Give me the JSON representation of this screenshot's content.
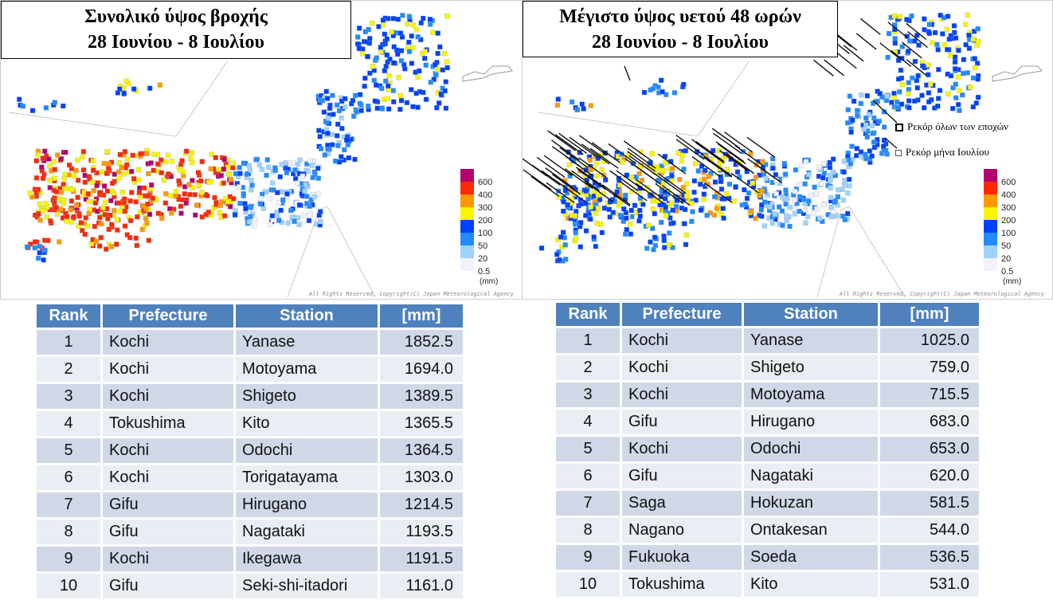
{
  "left_map": {
    "title_line1": "Συνολικό ύψος βροχής",
    "title_line2": "28 Ιουνίου - 8 Ιουλίου",
    "copyright": "All Rights Reserved, Copyright(C) Japan Meteorological Agency"
  },
  "right_map": {
    "title_line1": "Μέγιστο ύψος υετού 48 ωρών",
    "title_line2": "28 Ιουνίου - 8 Ιουλίου",
    "record_all_time": "Ρεκόρ όλων των εποχών",
    "record_july": "Ρεκόρ μήνα Ιουλίου",
    "copyright": "All Rights Reserved, Copyright(C) Japan Meteorological Agency"
  },
  "legend": {
    "unit": "(mm)",
    "levels": [
      {
        "label": "600",
        "color": "#b4006e"
      },
      {
        "label": "400",
        "color": "#ff2800"
      },
      {
        "label": "300",
        "color": "#ff9900"
      },
      {
        "label": "200",
        "color": "#faf500"
      },
      {
        "label": "100",
        "color": "#0041ff"
      },
      {
        "label": "50",
        "color": "#218cff"
      },
      {
        "label": "20",
        "color": "#a0d2ff"
      },
      {
        "label": "0.5",
        "color": "#f2f2ff"
      }
    ]
  },
  "tables": {
    "headers": [
      "Rank",
      "Prefecture",
      "Station",
      "[mm]"
    ],
    "left_rows": [
      [
        "1",
        "Kochi",
        "Yanase",
        "1852.5"
      ],
      [
        "2",
        "Kochi",
        "Motoyama",
        "1694.0"
      ],
      [
        "3",
        "Kochi",
        "Shigeto",
        "1389.5"
      ],
      [
        "4",
        "Tokushima",
        "Kito",
        "1365.5"
      ],
      [
        "5",
        "Kochi",
        "Odochi",
        "1364.5"
      ],
      [
        "6",
        "Kochi",
        "Torigatayama",
        "1303.0"
      ],
      [
        "7",
        "Gifu",
        "Hirugano",
        "1214.5"
      ],
      [
        "8",
        "Gifu",
        "Nagataki",
        "1193.5"
      ],
      [
        "9",
        "Kochi",
        "Ikegawa",
        "1191.5"
      ],
      [
        "10",
        "Gifu",
        "Seki-shi-itadori",
        "1161.0"
      ]
    ],
    "right_rows": [
      [
        "1",
        "Kochi",
        "Yanase",
        "1025.0"
      ],
      [
        "2",
        "Kochi",
        "Shigeto",
        "759.0"
      ],
      [
        "3",
        "Kochi",
        "Motoyama",
        "715.5"
      ],
      [
        "4",
        "Gifu",
        "Hirugano",
        "683.0"
      ],
      [
        "5",
        "Kochi",
        "Odochi",
        "653.0"
      ],
      [
        "6",
        "Gifu",
        "Nagataki",
        "620.0"
      ],
      [
        "7",
        "Saga",
        "Hokuzan",
        "581.5"
      ],
      [
        "8",
        "Nagano",
        "Ontakesan",
        "544.0"
      ],
      [
        "9",
        "Fukuoka",
        "Soeda",
        "536.5"
      ],
      [
        "10",
        "Tokushima",
        "Kito",
        "531.0"
      ]
    ]
  }
}
